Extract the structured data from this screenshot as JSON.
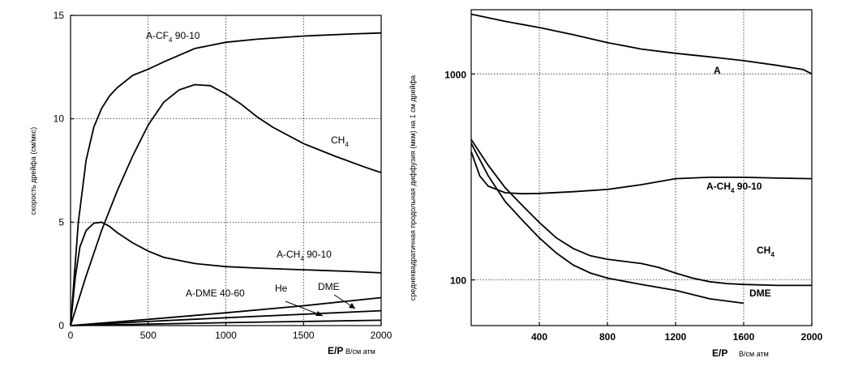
{
  "chart_data": [
    {
      "type": "line",
      "ylabel": "скорость дрейфа (см/мкс)",
      "xlabel": "E/P",
      "xlabel_unit": "В/см атм",
      "xlim": [
        0,
        2000
      ],
      "ylim": [
        0,
        15
      ],
      "x_ticks": [
        "0",
        "500",
        "1000",
        "1500",
        "2000"
      ],
      "y_ticks": [
        "0",
        "5",
        "10",
        "15"
      ],
      "grid": "dotted",
      "series": [
        {
          "name": "A-CF4 90-10",
          "label_main": "A-CF",
          "label_sub": "4",
          "label_tail": " 90-10",
          "x": [
            0,
            50,
            100,
            150,
            200,
            250,
            300,
            400,
            500,
            600,
            800,
            1000,
            1200,
            1500,
            1800,
            2000
          ],
          "y": [
            0,
            5,
            8,
            9.6,
            10.5,
            11.1,
            11.5,
            12.1,
            12.4,
            12.75,
            13.4,
            13.7,
            13.85,
            14.0,
            14.1,
            14.15
          ]
        },
        {
          "name": "CH4",
          "label_main": "CH",
          "label_sub": "4",
          "label_tail": "",
          "x": [
            0,
            100,
            200,
            300,
            400,
            500,
            600,
            700,
            800,
            900,
            1000,
            1100,
            1200,
            1300,
            1500,
            1700,
            1900,
            2000
          ],
          "y": [
            0,
            2.4,
            4.6,
            6.5,
            8.2,
            9.7,
            10.8,
            11.4,
            11.65,
            11.6,
            11.2,
            10.7,
            10.1,
            9.6,
            8.8,
            8.2,
            7.65,
            7.4
          ]
        },
        {
          "name": "A-CH4 90-10",
          "label_main": "A-CH",
          "label_sub": "4",
          "label_tail": " 90-10",
          "x": [
            0,
            30,
            60,
            100,
            150,
            200,
            250,
            300,
            400,
            500,
            600,
            800,
            1000,
            1200,
            1500,
            1800,
            2000
          ],
          "y": [
            0,
            2.3,
            3.8,
            4.6,
            4.95,
            5.0,
            4.8,
            4.5,
            4.0,
            3.6,
            3.3,
            3.0,
            2.85,
            2.78,
            2.7,
            2.62,
            2.55
          ]
        },
        {
          "name": "DME",
          "label_main": "DME",
          "label_sub": "",
          "label_tail": "",
          "x": [
            0,
            500,
            1000,
            1500,
            2000
          ],
          "y": [
            0,
            0.3,
            0.62,
            0.96,
            1.35
          ]
        },
        {
          "name": "A-DME 40-60",
          "label_main": "A-DME 40-60",
          "label_sub": "",
          "label_tail": "",
          "x": [
            0,
            500,
            1000,
            1500,
            2000
          ],
          "y": [
            0,
            0.2,
            0.38,
            0.55,
            0.72
          ]
        },
        {
          "name": "He",
          "label_main": "He",
          "label_sub": "",
          "label_tail": "",
          "x": [
            0,
            500,
            1000,
            1500,
            2000
          ],
          "y": [
            0,
            0.07,
            0.14,
            0.2,
            0.26
          ]
        }
      ]
    },
    {
      "type": "line",
      "ylabel": "среднеквадратичная продольная диффузия (мкм) на 1 см дрейфа",
      "xlabel": "E/P",
      "xlabel_unit": "В/см атм",
      "xlim": [
        0,
        2000
      ],
      "ylim": [
        60,
        2050
      ],
      "yscale": "log",
      "x_ticks": [
        "400",
        "800",
        "1200",
        "1600",
        "2000"
      ],
      "y_ticks": [
        "100",
        "1000"
      ],
      "grid": "dotted",
      "series": [
        {
          "name": "A",
          "label_main": "A",
          "label_sub": "",
          "label_tail": "",
          "x": [
            0,
            200,
            400,
            600,
            800,
            1000,
            1200,
            1400,
            1600,
            1800,
            1950,
            2000
          ],
          "y": [
            1950,
            1800,
            1680,
            1550,
            1420,
            1320,
            1260,
            1210,
            1160,
            1100,
            1050,
            1000
          ]
        },
        {
          "name": "A-CH4 90-10",
          "label_main": "A-CH",
          "label_sub": "4",
          "label_tail": " 90-10",
          "x": [
            0,
            50,
            100,
            200,
            300,
            400,
            600,
            800,
            1000,
            1200,
            1400,
            1600,
            1800,
            2000
          ],
          "y": [
            420,
            320,
            285,
            265,
            262,
            263,
            268,
            275,
            290,
            310,
            315,
            315,
            312,
            310
          ]
        },
        {
          "name": "CH4",
          "label_main": "CH",
          "label_sub": "4",
          "label_tail": "",
          "x": [
            0,
            100,
            200,
            300,
            400,
            500,
            600,
            700,
            800,
            1000,
            1100,
            1200,
            1300,
            1400,
            1500,
            1600,
            1800,
            2000
          ],
          "y": [
            480,
            360,
            280,
            230,
            190,
            160,
            142,
            131,
            126,
            120,
            115,
            108,
            102,
            98,
            96,
            95,
            94,
            94
          ]
        },
        {
          "name": "DME",
          "label_main": "DME",
          "label_sub": "",
          "label_tail": "",
          "x": [
            0,
            100,
            200,
            300,
            400,
            500,
            600,
            700,
            800,
            1000,
            1200,
            1400,
            1600
          ],
          "y": [
            460,
            320,
            240,
            195,
            160,
            135,
            118,
            108,
            102,
            95,
            89,
            81,
            77
          ]
        }
      ]
    }
  ]
}
